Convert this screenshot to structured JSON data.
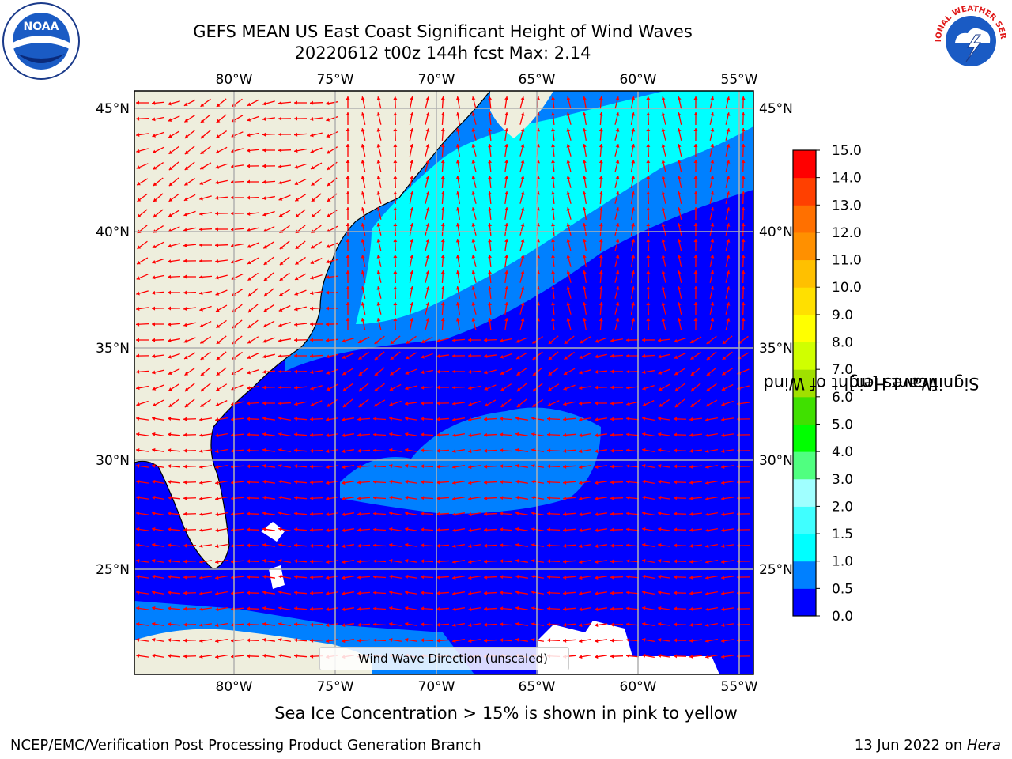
{
  "header": {
    "title_line1": "GEFS MEAN US East Coast Significant Height of Wind Waves",
    "title_line2": "20220612 t00z 144h fcst   Max: 2.14"
  },
  "map": {
    "lon_labels": [
      "80°W",
      "75°W",
      "70°W",
      "65°W",
      "60°W",
      "55°W"
    ],
    "lat_labels": [
      "45°N",
      "40°N",
      "35°N",
      "30°N",
      "25°N"
    ],
    "colors": {
      "land": "#eeeedd",
      "ocean_low": "#0000ff",
      "ocean_mid": "#0080ff",
      "ocean_high": "#00ffff",
      "arrow": "#ff0000",
      "grid": "#b0b0b0"
    }
  },
  "legend": {
    "label": "Wind Wave Direction (unscaled)"
  },
  "colorbar": {
    "label_line1": "Significant Height of Wind",
    "label_line2": "Waves [m]",
    "ticks": [
      "0.0",
      "0.5",
      "1.0",
      "1.5",
      "2.0",
      "3.0",
      "4.0",
      "5.0",
      "6.0",
      "7.0",
      "8.0",
      "9.0",
      "10.0",
      "11.0",
      "12.0",
      "13.0",
      "14.0",
      "15.0"
    ],
    "colors": [
      "#0000ff",
      "#0080ff",
      "#00ffff",
      "#40ffff",
      "#a0ffff",
      "#50ff80",
      "#00ff00",
      "#40e000",
      "#a0e000",
      "#d0ff00",
      "#ffff00",
      "#ffe000",
      "#ffc000",
      "#ff9000",
      "#ff7000",
      "#ff4000",
      "#ff0000"
    ]
  },
  "footer": {
    "note": "Sea Ice Concentration > 15% is shown in pink to yellow",
    "left": "NCEP/EMC/Verification Post Processing Product Generation Branch",
    "right_date": "13 Jun 2022 on ",
    "right_host": "Hera"
  },
  "logos": {
    "noaa_text": "NOAA",
    "nws_text": "NATIONAL WEATHER SERVICE"
  }
}
